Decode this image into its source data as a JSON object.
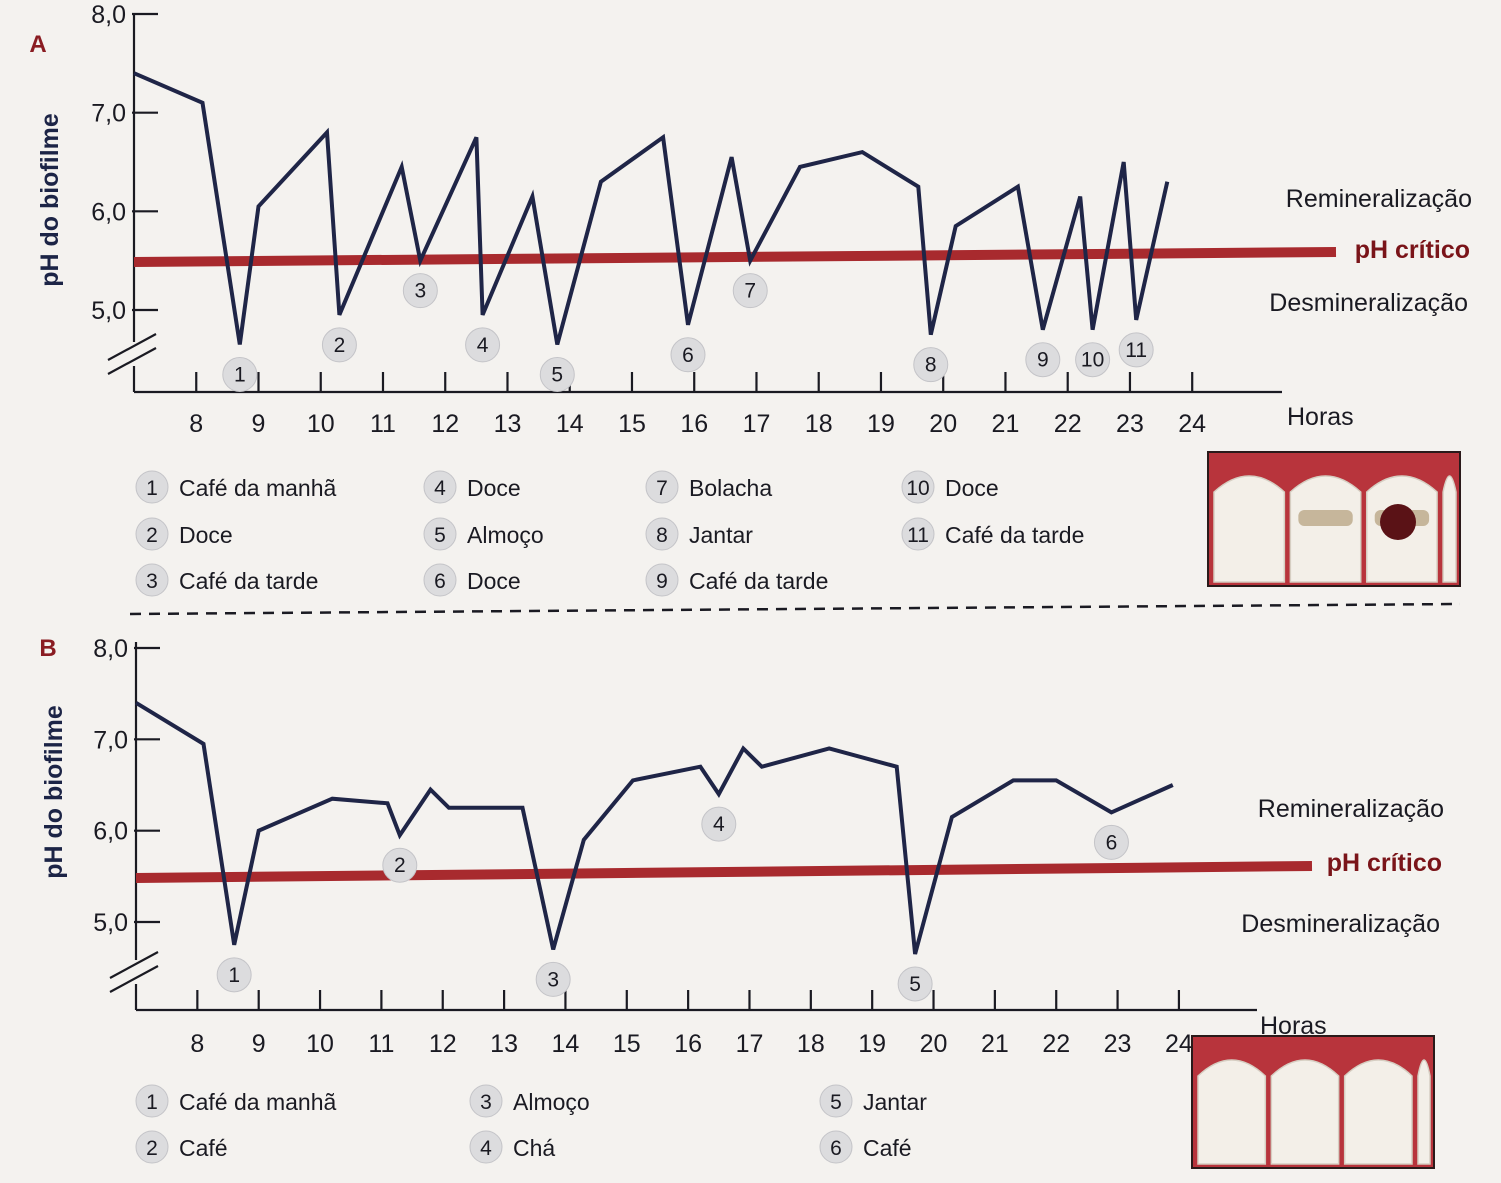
{
  "chart_data": [
    {
      "type": "line",
      "panel_label": "A",
      "ylabel": "pH do biofilme",
      "xlabel": "Horas",
      "yticks": [
        "5,0",
        "6,0",
        "7,0",
        "8,0"
      ],
      "ytick_values": [
        5.0,
        6.0,
        7.0,
        8.0
      ],
      "xticks": [
        "8",
        "9",
        "10",
        "11",
        "12",
        "13",
        "14",
        "15",
        "16",
        "17",
        "18",
        "19",
        "20",
        "21",
        "22",
        "23",
        "24"
      ],
      "xtick_values": [
        8,
        9,
        10,
        11,
        12,
        13,
        14,
        15,
        16,
        17,
        18,
        19,
        20,
        21,
        22,
        23,
        24
      ],
      "ylim": [
        4.6,
        8.0
      ],
      "xlim": [
        7.0,
        24.8
      ],
      "critical_ph": {
        "label": "pH crítico",
        "value": 5.5
      },
      "zones": {
        "upper": "Remineralização",
        "lower": "Desmineralização"
      },
      "series": [
        {
          "x": [
            7.0,
            8.1,
            8.7,
            9.0,
            10.1,
            10.3,
            11.3,
            11.6,
            12.5,
            12.6,
            13.4,
            13.8,
            14.5,
            15.5,
            15.9,
            16.6,
            16.9,
            17.7,
            18.7,
            19.6,
            19.8,
            20.2,
            21.2,
            21.6,
            22.2,
            22.4,
            22.9,
            23.1,
            23.6
          ],
          "y": [
            7.4,
            7.1,
            4.65,
            6.05,
            6.8,
            4.95,
            6.45,
            5.5,
            6.75,
            4.95,
            6.15,
            4.65,
            6.3,
            6.75,
            4.85,
            6.55,
            5.5,
            6.45,
            6.6,
            6.25,
            4.75,
            5.85,
            6.25,
            4.8,
            6.15,
            4.8,
            6.5,
            4.9,
            6.3
          ]
        }
      ],
      "markers": [
        {
          "n": "1",
          "x": 8.7,
          "y": 4.65
        },
        {
          "n": "2",
          "x": 10.3,
          "y": 4.95
        },
        {
          "n": "3",
          "x": 11.6,
          "y": 5.5
        },
        {
          "n": "4",
          "x": 12.6,
          "y": 4.95
        },
        {
          "n": "5",
          "x": 13.8,
          "y": 4.65
        },
        {
          "n": "6",
          "x": 15.9,
          "y": 4.85
        },
        {
          "n": "7",
          "x": 16.9,
          "y": 5.5
        },
        {
          "n": "8",
          "x": 19.8,
          "y": 4.75
        },
        {
          "n": "9",
          "x": 21.6,
          "y": 4.8
        },
        {
          "n": "10",
          "x": 22.4,
          "y": 4.8
        },
        {
          "n": "11",
          "x": 23.1,
          "y": 4.9
        }
      ],
      "legend": [
        {
          "n": "1",
          "label": "Café da manhã"
        },
        {
          "n": "2",
          "label": "Doce"
        },
        {
          "n": "3",
          "label": "Café da tarde"
        },
        {
          "n": "4",
          "label": "Doce"
        },
        {
          "n": "5",
          "label": "Almoço"
        },
        {
          "n": "6",
          "label": "Doce"
        },
        {
          "n": "7",
          "label": "Bolacha"
        },
        {
          "n": "8",
          "label": "Jantar"
        },
        {
          "n": "9",
          "label": "Café da tarde"
        },
        {
          "n": "10",
          "label": "Doce"
        },
        {
          "n": "11",
          "label": "Café da tarde"
        }
      ]
    },
    {
      "type": "line",
      "panel_label": "B",
      "ylabel": "pH do biofilme",
      "xlabel": "Horas",
      "yticks": [
        "5,0",
        "6,0",
        "7,0",
        "8,0"
      ],
      "ytick_values": [
        5.0,
        6.0,
        7.0,
        8.0
      ],
      "xticks": [
        "8",
        "9",
        "10",
        "11",
        "12",
        "13",
        "14",
        "15",
        "16",
        "17",
        "18",
        "19",
        "20",
        "21",
        "22",
        "23",
        "24"
      ],
      "xtick_values": [
        8,
        9,
        10,
        11,
        12,
        13,
        14,
        15,
        16,
        17,
        18,
        19,
        20,
        21,
        22,
        23,
        24
      ],
      "ylim": [
        4.6,
        8.0
      ],
      "xlim": [
        7.0,
        24.8
      ],
      "critical_ph": {
        "label": "pH crítico",
        "value": 5.5
      },
      "zones": {
        "upper": "Remineralização",
        "lower": "Desmineralização"
      },
      "series": [
        {
          "x": [
            7.0,
            8.1,
            8.6,
            9.0,
            10.2,
            11.1,
            11.3,
            11.8,
            12.1,
            13.3,
            13.8,
            14.3,
            15.1,
            16.2,
            16.5,
            16.9,
            17.2,
            18.3,
            19.4,
            19.7,
            20.3,
            21.3,
            22.0,
            22.9,
            23.9
          ],
          "y": [
            7.4,
            6.95,
            4.75,
            6.0,
            6.35,
            6.3,
            5.95,
            6.45,
            6.25,
            6.25,
            4.7,
            5.9,
            6.55,
            6.7,
            6.4,
            6.9,
            6.7,
            6.9,
            6.7,
            4.65,
            6.15,
            6.55,
            6.55,
            6.2,
            6.5
          ]
        }
      ],
      "markers": [
        {
          "n": "1",
          "x": 8.6,
          "y": 4.75
        },
        {
          "n": "2",
          "x": 11.3,
          "y": 5.95
        },
        {
          "n": "3",
          "x": 13.8,
          "y": 4.7
        },
        {
          "n": "4",
          "x": 16.5,
          "y": 6.4
        },
        {
          "n": "5",
          "x": 19.7,
          "y": 4.65
        },
        {
          "n": "6",
          "x": 22.9,
          "y": 6.2
        }
      ],
      "legend": [
        {
          "n": "1",
          "label": "Café da manhã"
        },
        {
          "n": "2",
          "label": "Café"
        },
        {
          "n": "3",
          "label": "Almoço"
        },
        {
          "n": "4",
          "label": "Chá"
        },
        {
          "n": "5",
          "label": "Jantar"
        },
        {
          "n": "6",
          "label": "Café"
        }
      ]
    }
  ]
}
